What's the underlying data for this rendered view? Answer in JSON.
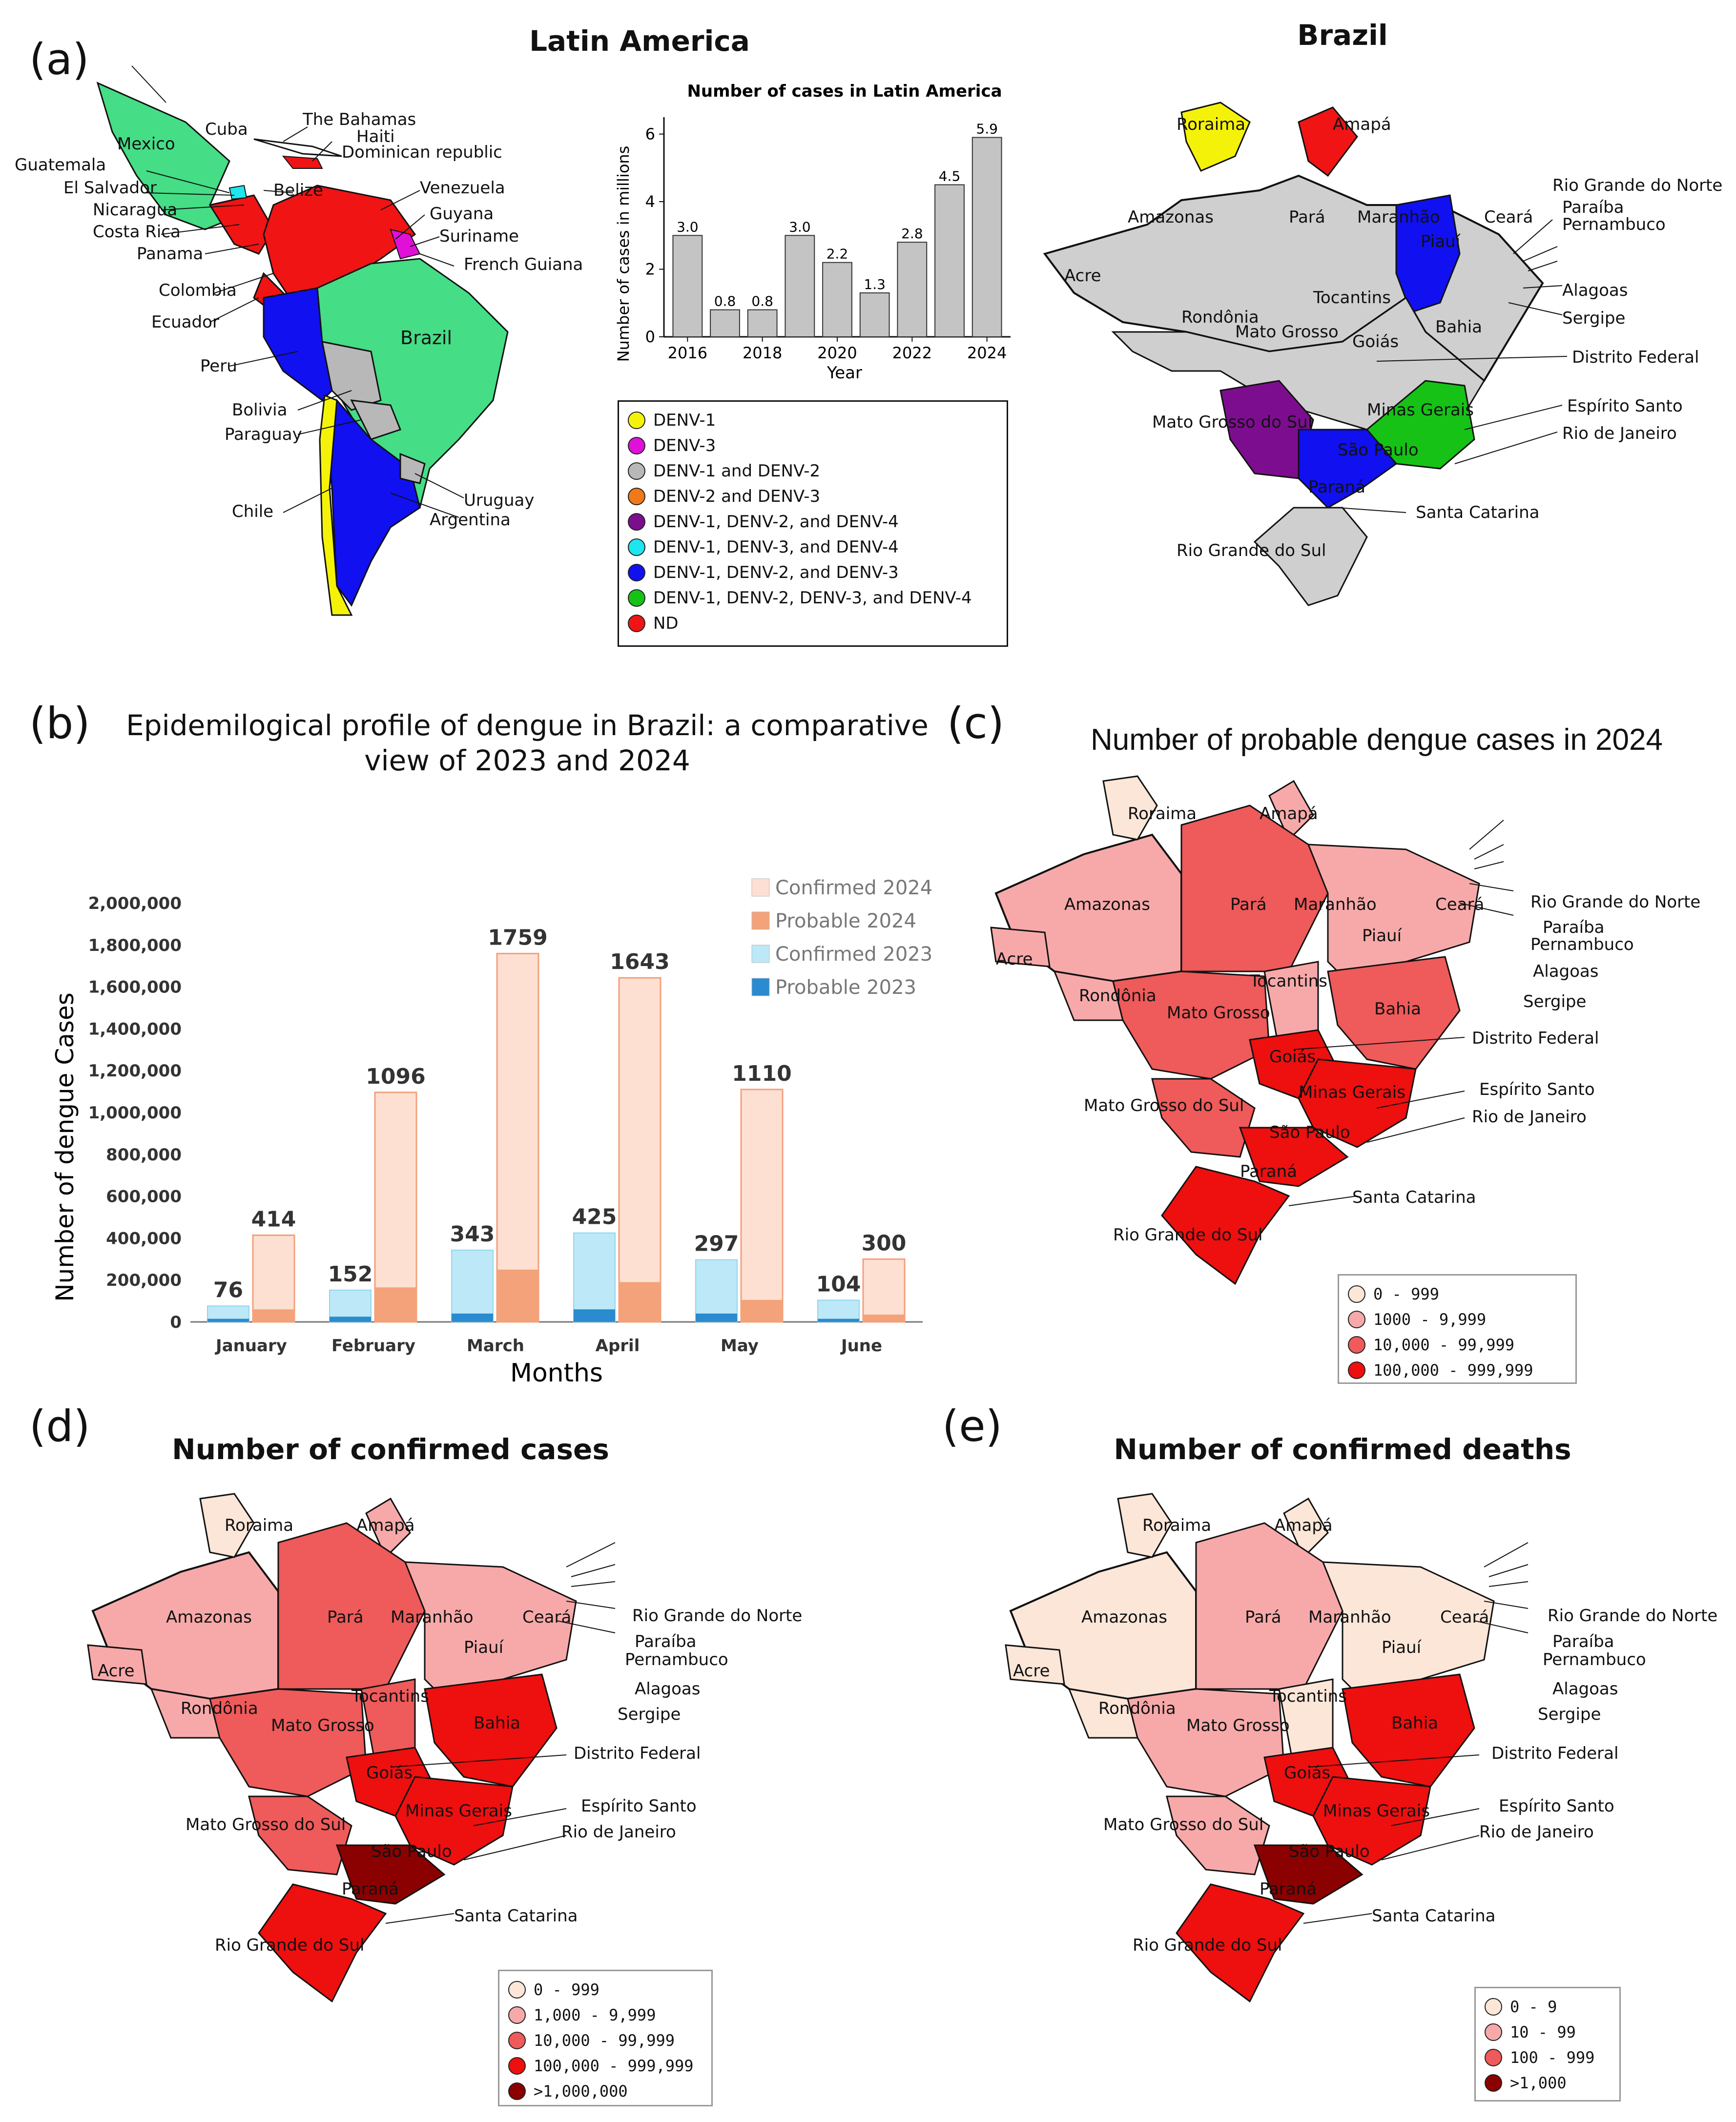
{
  "panel_a": {
    "letter": "(a)",
    "latin_title": "Latin America",
    "brazil_title": "Brazil",
    "countries": [
      "Mexico",
      "Cuba",
      "The Bahamas",
      "Haiti",
      "Dominican republic",
      "Guatemala",
      "El Salvador",
      "Nicaragua",
      "Costa Rica",
      "Panama",
      "Belize",
      "Venezuela",
      "Guyana",
      "Suriname",
      "French Guiana",
      "Colombia",
      "Ecuador",
      "Brazil",
      "Peru",
      "Bolivia",
      "Paraguay",
      "Chile",
      "Uruguay",
      "Argentina"
    ],
    "serotype_legend": [
      {
        "label": "DENV-1",
        "color": "#f5f20a"
      },
      {
        "label": "DENV-3",
        "color": "#e010d8"
      },
      {
        "label": "DENV-1 and DENV-2",
        "color": "#b8b8b8"
      },
      {
        "label": "DENV-2 and DENV-3",
        "color": "#f07a18"
      },
      {
        "label": "DENV-1, DENV-2, and DENV-4",
        "color": "#7d0d8f"
      },
      {
        "label": "DENV-1, DENV-3, and DENV-4",
        "color": "#1ee6ef"
      },
      {
        "label": "DENV-1, DENV-2, and DENV-3",
        "color": "#1010f0"
      },
      {
        "label": "DENV-1, DENV-2, DENV-3, and DENV-4",
        "color": "#16c216"
      },
      {
        "label": "ND",
        "color": "#f01414"
      }
    ]
  },
  "brazil_states": [
    "Roraima",
    "Amapá",
    "Amazonas",
    "Pará",
    "Maranhão",
    "Ceará",
    "Rio Grande do Norte",
    "Paraíba",
    "Pernambuco",
    "Piauí",
    "Acre",
    "Tocantins",
    "Alagoas",
    "Sergipe",
    "Rondônia",
    "Mato Grosso",
    "Bahia",
    "Goiás",
    "Distrito Federal",
    "Minas Gerais",
    "Mato Grosso do Sul",
    "Espírito Santo",
    "São Paulo",
    "Rio de Janeiro",
    "Paraná",
    "Santa Catarina",
    "Rio Grande do Sul"
  ],
  "panel_b": {
    "letter": "(b)",
    "title_line1": "Epidemilogical profile of dengue in Brazil: a comparative",
    "title_line2": "view of 2023 and 2024"
  },
  "panel_c": {
    "letter": "(c)",
    "title": "Number of probable dengue cases in 2024",
    "legend": [
      {
        "label": "0 - 999",
        "color": "#fbe6d8"
      },
      {
        "label": "1000  -  9,999",
        "color": "#f7a9a9"
      },
      {
        "label": "10,000 - 99,999",
        "color": "#ef5a5a"
      },
      {
        "label": "100,000 - 999,999",
        "color": "#ee0f0f"
      }
    ]
  },
  "panel_d": {
    "letter": "(d)",
    "title": "Number of confirmed cases",
    "legend": [
      {
        "label": "0 - 999",
        "color": "#fbe6d8"
      },
      {
        "label": "1,000 - 9,999",
        "color": "#f7a9a9"
      },
      {
        "label": "10,000 - 99,999",
        "color": "#ef5a5a"
      },
      {
        "label": "100,000 - 999,999",
        "color": "#ee0f0f"
      },
      {
        "label": ">1,000,000",
        "color": "#8b0000"
      }
    ]
  },
  "panel_e": {
    "letter": "(e)",
    "title": "Number of confirmed deaths",
    "legend": [
      {
        "label": "0 - 9",
        "color": "#fbe6d8"
      },
      {
        "label": "10 - 99",
        "color": "#f7a9a9"
      },
      {
        "label": "100 - 999",
        "color": "#ef5a5a"
      },
      {
        "label": ">1,000",
        "color": "#8b0000"
      }
    ]
  },
  "chart_data": [
    {
      "type": "bar",
      "title": "Number of cases in Latin America",
      "xlabel": "Year",
      "ylabel": "Number of cases in millions",
      "x": [
        2016,
        2017,
        2018,
        2019,
        2020,
        2021,
        2022,
        2023,
        2024
      ],
      "values": [
        3.0,
        0.8,
        0.8,
        3.0,
        2.2,
        1.3,
        2.8,
        4.5,
        5.9
      ],
      "data_labels": [
        "3.0",
        "0.8",
        "0.8",
        "3.0",
        "2.2",
        "1.3",
        "2.8",
        "4.5",
        "5.9"
      ],
      "xticks": [
        "2016",
        "2018",
        "2020",
        "2022",
        "2024"
      ],
      "yticks": [
        "0",
        "2",
        "4",
        "6"
      ],
      "ylim": [
        0,
        6.5
      ]
    },
    {
      "type": "bar",
      "title": "Epidemilogical profile of dengue in Brazil: a comparative view of 2023 and 2024",
      "xlabel": "Months",
      "ylabel": "Number of dengue Cases",
      "categories": [
        "January",
        "February",
        "March",
        "April",
        "May",
        "June"
      ],
      "series": [
        {
          "name": "Confirmed 2024",
          "color": "#fde0d2",
          "values": [
            414000,
            1096000,
            1759000,
            1643000,
            1110000,
            300000
          ]
        },
        {
          "name": "Probable 2024",
          "color": "#f4a27a",
          "values": [
            60000,
            165000,
            250000,
            190000,
            105000,
            35000
          ]
        },
        {
          "name": "Confirmed 2023",
          "color": "#bce8f7",
          "values": [
            76000,
            152000,
            343000,
            425000,
            297000,
            104000
          ]
        },
        {
          "name": "Probable 2023",
          "color": "#2a8bd0",
          "values": [
            15000,
            25000,
            40000,
            60000,
            40000,
            15000
          ]
        }
      ],
      "labels_2023": [
        "76",
        "152",
        "343",
        "425",
        "297",
        "104"
      ],
      "labels_2024": [
        "414",
        "1096",
        "1759",
        "1643",
        "1110",
        "300"
      ],
      "yticks": [
        "0",
        "200,000",
        "400,000",
        "600,000",
        "800,000",
        "1,000,000",
        "1,200,000",
        "1,400,000",
        "1,600,000",
        "1,800,000",
        "2,000,000"
      ],
      "ylim": [
        0,
        2000000
      ]
    }
  ]
}
